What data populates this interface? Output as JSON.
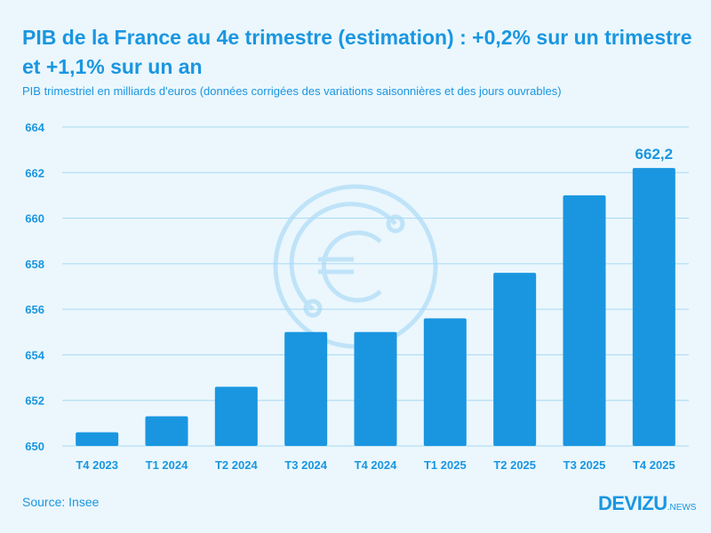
{
  "title": "PIB de la France au 4e trimestre (estimation) : +0,2% sur un trimestre et +1,1% sur un an",
  "subtitle": "PIB trimestriel en milliards d'euros (données corrigées des variations saisonnières et des jours ouvrables)",
  "source": "Source: Insee",
  "logo": {
    "main": "DEVIZU",
    "suffix": ".NEWS"
  },
  "colors": {
    "bar": "#1a96e0",
    "text": "#1a96e0",
    "grid": "#a9d8f3",
    "background": "#ebf7fd",
    "watermark": "#bfe3f8"
  },
  "watermark_icon": "euro-coin-icon",
  "chart_data": {
    "type": "bar",
    "categories": [
      "T4 2023",
      "T1 2024",
      "T2 2024",
      "T3 2024",
      "T4 2024",
      "T1 2025",
      "T2 2025",
      "T3 2025",
      "T4 2025"
    ],
    "values": [
      650.6,
      651.3,
      652.6,
      655.0,
      655.0,
      655.6,
      657.6,
      661.0,
      662.2
    ],
    "ylim": [
      650,
      664
    ],
    "yticks": [
      "650",
      "652",
      "654",
      "656",
      "658",
      "660",
      "662",
      "664"
    ],
    "grid": true,
    "data_labels": [
      {
        "category": "T4 2025",
        "text": "662,2"
      }
    ]
  }
}
